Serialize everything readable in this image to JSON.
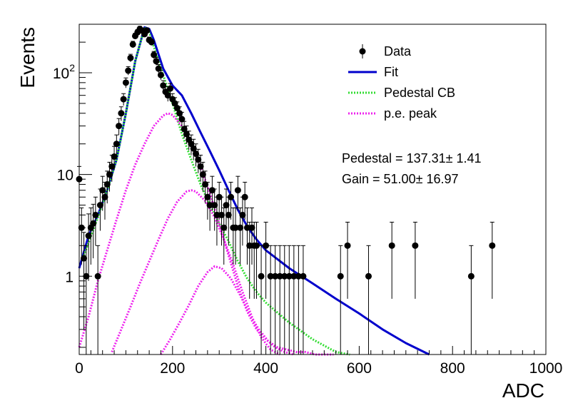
{
  "chart_data": {
    "type": "scatter",
    "xlabel": "ADC",
    "ylabel": "Events",
    "xlim": [
      0,
      1000
    ],
    "ylim": [
      0.17,
      300
    ],
    "yscale": "log",
    "grid": false,
    "legend_position": "top-right",
    "x_ticks": [
      {
        "value": 0,
        "label": "0"
      },
      {
        "value": 200,
        "label": "200"
      },
      {
        "value": 400,
        "label": "400"
      },
      {
        "value": 600,
        "label": "600"
      },
      {
        "value": 800,
        "label": "800"
      },
      {
        "value": 1000,
        "label": "1000"
      }
    ],
    "y_ticks": [
      {
        "value": 1,
        "label": "1",
        "exp": ""
      },
      {
        "value": 10,
        "label": "10",
        "exp": ""
      },
      {
        "value": 100,
        "label": "10",
        "exp": "2"
      }
    ],
    "legend": [
      {
        "label": "Data",
        "kind": "marker",
        "color": "#000000"
      },
      {
        "label": "Fit",
        "kind": "line",
        "color": "#0000cc"
      },
      {
        "label": "Pedestal CB",
        "kind": "dotted",
        "color": "#33dd33"
      },
      {
        "label": "p.e. peak",
        "kind": "dotted",
        "color": "#ee22ee"
      }
    ],
    "annotations": [
      "Pedestal = 137.31± 1.41",
      "Gain = 51.00± 16.97"
    ],
    "series": [
      {
        "name": "Data",
        "kind": "points",
        "color": "#000000",
        "x": [
          0,
          5,
          10,
          15,
          20,
          25,
          30,
          35,
          40,
          45,
          50,
          55,
          60,
          65,
          70,
          75,
          80,
          85,
          90,
          95,
          100,
          105,
          110,
          115,
          120,
          125,
          130,
          135,
          140,
          145,
          150,
          155,
          160,
          165,
          170,
          175,
          180,
          185,
          190,
          195,
          200,
          205,
          210,
          215,
          220,
          225,
          230,
          235,
          240,
          245,
          250,
          255,
          260,
          265,
          270,
          275,
          280,
          285,
          290,
          295,
          300,
          305,
          310,
          315,
          320,
          325,
          330,
          335,
          340,
          345,
          350,
          355,
          360,
          365,
          370,
          375,
          380,
          390,
          400,
          410,
          420,
          430,
          440,
          450,
          460,
          470,
          480,
          560,
          575,
          620,
          670,
          720,
          840,
          885
        ],
        "y": [
          9,
          3,
          1.5,
          1,
          2.5,
          3,
          3.3,
          4,
          1,
          5,
          7,
          6,
          8,
          10,
          12,
          15,
          20,
          30,
          40,
          55,
          80,
          105,
          140,
          190,
          230,
          250,
          270,
          260,
          240,
          260,
          210,
          200,
          150,
          130,
          110,
          95,
          75,
          65,
          60,
          70,
          55,
          50,
          45,
          40,
          35,
          28,
          25,
          22,
          20,
          18,
          16,
          14,
          12,
          10,
          8,
          6,
          5,
          7,
          5,
          4,
          6,
          4,
          3,
          5,
          4,
          6,
          3,
          3,
          7,
          3,
          4,
          6,
          3,
          2,
          3,
          2,
          2,
          1,
          2,
          1,
          1,
          1,
          1,
          1,
          1,
          1,
          1,
          1,
          2,
          1,
          2,
          2,
          1,
          2
        ],
        "errors": [
          3,
          1.7,
          1.2,
          1,
          1.6,
          1.7,
          1.8,
          2,
          1,
          2.2,
          2.6,
          2.4,
          2.8,
          3.2,
          3.5,
          3.9,
          4.5,
          5.5,
          6.3,
          7.4,
          9,
          10,
          12,
          14,
          15,
          16,
          16,
          16,
          15,
          16,
          14.5,
          14,
          12,
          11.4,
          10.5,
          9.7,
          8.7,
          8,
          7.7,
          8.4,
          7.4,
          7,
          6.7,
          6.3,
          5.9,
          5.3,
          5,
          4.7,
          4.5,
          4.2,
          4,
          3.7,
          3.5,
          3.2,
          2.8,
          2.4,
          2.2,
          2.6,
          2.2,
          2,
          2.4,
          2,
          1.7,
          2.2,
          2,
          2.4,
          1.7,
          1.7,
          2.6,
          1.7,
          2,
          2.4,
          1.7,
          1.4,
          1.7,
          1.4,
          1.4,
          1,
          1.4,
          1,
          1,
          1,
          1,
          1,
          1,
          1,
          1,
          1,
          1.4,
          1,
          1.4,
          1.4,
          1,
          1.4
        ]
      },
      {
        "name": "Fit",
        "kind": "line",
        "color": "#0000cc",
        "x": [
          0,
          20,
          40,
          60,
          80,
          100,
          120,
          140,
          150,
          160,
          180,
          200,
          220,
          240,
          260,
          280,
          300,
          320,
          340,
          360,
          380,
          400,
          450,
          500,
          550,
          600,
          650,
          700,
          750
        ],
        "y": [
          1.2,
          2.5,
          4,
          7,
          14,
          40,
          130,
          280,
          270,
          210,
          110,
          75,
          60,
          40,
          26,
          17,
          11,
          7,
          4.5,
          3.1,
          2.3,
          1.8,
          1.2,
          0.85,
          0.6,
          0.43,
          0.3,
          0.22,
          0.17
        ]
      },
      {
        "name": "Pedestal CB",
        "kind": "dotted",
        "color": "#33dd33",
        "x": [
          10,
          40,
          60,
          80,
          100,
          120,
          140,
          150,
          160,
          180,
          200,
          220,
          240,
          260,
          280,
          300,
          320,
          340,
          360,
          380,
          400,
          450,
          500,
          550,
          580
        ],
        "y": [
          1.6,
          3.8,
          7,
          14,
          40,
          130,
          280,
          250,
          180,
          95,
          50,
          25,
          14,
          8,
          5,
          3.3,
          2.2,
          1.4,
          0.95,
          0.7,
          0.55,
          0.35,
          0.24,
          0.18,
          0.17
        ]
      },
      {
        "name": "p.e. peak 1",
        "kind": "dotted",
        "color": "#ee22ee",
        "x": [
          0,
          20,
          40,
          60,
          80,
          100,
          120,
          140,
          160,
          180,
          190,
          200,
          220,
          240,
          260,
          280,
          300,
          320,
          340,
          360,
          380,
          400,
          420,
          440,
          460
        ],
        "y": [
          0.2,
          0.4,
          0.9,
          1.8,
          3.6,
          7,
          12.5,
          20,
          30,
          38,
          40,
          38.5,
          30,
          20,
          12,
          6.5,
          3.3,
          1.6,
          0.8,
          0.45,
          0.3,
          0.24,
          0.2,
          0.18,
          0.17
        ]
      },
      {
        "name": "p.e. peak 2",
        "kind": "dotted",
        "color": "#ee22ee",
        "x": [
          70,
          90,
          110,
          130,
          150,
          170,
          190,
          210,
          230,
          240,
          250,
          270,
          290,
          310,
          330,
          350,
          370,
          390,
          410,
          430
        ],
        "y": [
          0.18,
          0.3,
          0.5,
          0.85,
          1.4,
          2.3,
          3.7,
          5.4,
          6.8,
          7,
          6.8,
          5.5,
          3.8,
          2.3,
          1.3,
          0.7,
          0.4,
          0.25,
          0.19,
          0.17
        ]
      },
      {
        "name": "p.e. peak 3",
        "kind": "dotted",
        "color": "#ee22ee",
        "x": [
          175,
          195,
          215,
          235,
          255,
          275,
          290,
          305,
          325,
          345,
          365,
          385,
          405,
          425,
          445,
          465,
          485,
          505,
          525,
          545
        ],
        "y": [
          0.17,
          0.24,
          0.35,
          0.52,
          0.8,
          1.1,
          1.25,
          1.2,
          0.95,
          0.65,
          0.42,
          0.3,
          0.23,
          0.2,
          0.19,
          0.18,
          0.18,
          0.17,
          0.17,
          0.17
        ]
      }
    ]
  }
}
